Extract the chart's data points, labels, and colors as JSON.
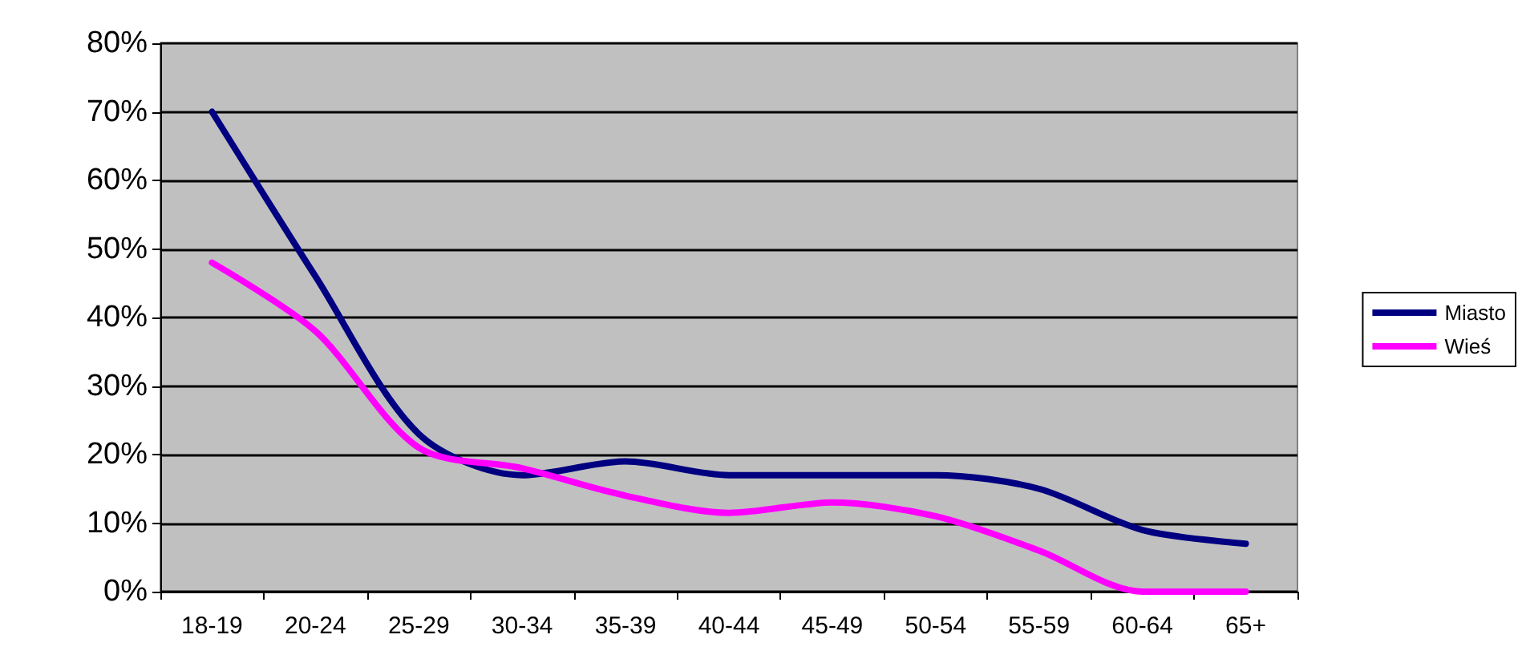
{
  "chart_data": {
    "type": "line",
    "categories": [
      "18-19",
      "20-24",
      "25-29",
      "30-34",
      "35-39",
      "40-44",
      "45-49",
      "50-54",
      "55-59",
      "60-64",
      "65+"
    ],
    "series": [
      {
        "name": "Miasto",
        "color": "#000080",
        "values": [
          0.7,
          0.46,
          0.23,
          0.17,
          0.19,
          0.17,
          0.17,
          0.17,
          0.15,
          0.09,
          0.07
        ]
      },
      {
        "name": "Wieś",
        "color": "#ff00ff",
        "values": [
          0.48,
          0.38,
          0.21,
          0.18,
          0.14,
          0.115,
          0.13,
          0.11,
          0.06,
          0,
          0
        ]
      }
    ],
    "ylim": [
      0,
      0.8
    ],
    "yticks": [
      {
        "value": 0,
        "label": "0%"
      },
      {
        "value": 0.1,
        "label": "10%"
      },
      {
        "value": 0.2,
        "label": "20%"
      },
      {
        "value": 0.3,
        "label": "30%"
      },
      {
        "value": 0.4,
        "label": "40%"
      },
      {
        "value": 0.5,
        "label": "50%"
      },
      {
        "value": 0.6,
        "label": "60%"
      },
      {
        "value": 0.7,
        "label": "70%"
      },
      {
        "value": 0.8,
        "label": "80%"
      }
    ],
    "grid": "y",
    "legend": "right",
    "marker": "none",
    "line_style": "solid"
  }
}
